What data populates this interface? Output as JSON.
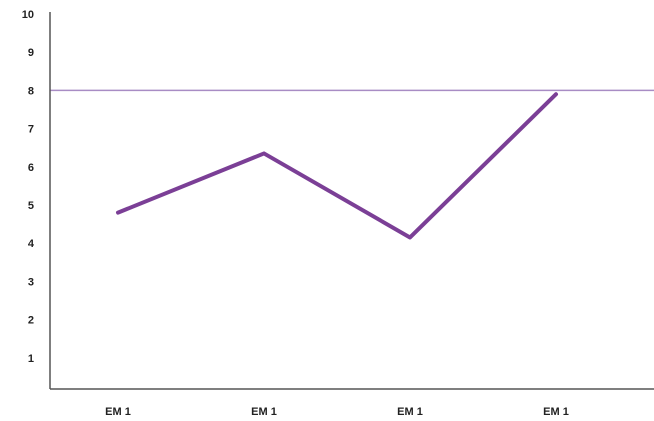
{
  "chart_data": {
    "type": "line",
    "categories": [
      "EM 1",
      "EM 1",
      "EM 1",
      "EM 1"
    ],
    "series": [
      {
        "values": [
          4.8,
          6.35,
          4.15,
          7.9
        ],
        "color": "#7b3f96"
      }
    ],
    "reference_line": {
      "value": 8,
      "color": "#a88cc4"
    },
    "ylim": [
      0,
      10
    ],
    "yticks": [
      1,
      2,
      3,
      4,
      5,
      6,
      7,
      8,
      9,
      10
    ],
    "ytick_labels": [
      "1",
      "2",
      "3",
      "4",
      "5",
      "6",
      "7",
      "8",
      "9",
      "10"
    ],
    "grid": false,
    "legend": false
  }
}
